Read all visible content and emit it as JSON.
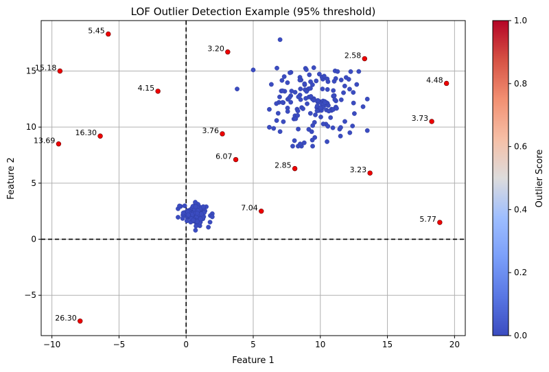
{
  "chart_data": {
    "type": "scatter",
    "title": "LOF Outlier Detection Example (95% threshold)",
    "xlabel": "Feature 1",
    "ylabel": "Feature 2",
    "xlim": [
      -10.8,
      20.8
    ],
    "ylim": [
      -8.6,
      19.5
    ],
    "xticks": [
      -10,
      -5,
      0,
      5,
      10,
      15,
      20
    ],
    "yticks": [
      -5,
      0,
      5,
      10,
      15
    ],
    "xtick_labels": [
      "−10",
      "−5",
      "0",
      "5",
      "10",
      "15",
      "20"
    ],
    "ytick_labels": [
      "−5",
      "0",
      "5",
      "10",
      "15"
    ],
    "grid": true,
    "reference_lines": {
      "x": 0,
      "y": 0,
      "style": "dashed"
    },
    "colorbar": {
      "label": "Outlier Score",
      "min": 0.0,
      "max": 1.0,
      "ticks": [
        0.0,
        0.2,
        0.4,
        0.6,
        0.8,
        1.0
      ],
      "tick_labels": [
        "0.0",
        "0.2",
        "0.4",
        "0.6",
        "0.8",
        "1.0"
      ],
      "colormap": "coolwarm"
    },
    "inlier_color": "#3b4cc0",
    "outlier_color": "#ee0000",
    "clusters": [
      {
        "name": "",
        "center": [
          9.5,
          12.2
        ],
        "spread": [
          1.6,
          1.65
        ],
        "count": 150,
        "seed": 7,
        "bounds": [
          6.2,
          13.5,
          8.3,
          15.4
        ]
      },
      {
        "name": "",
        "center": [
          0.75,
          2.15
        ],
        "spread": [
          0.55,
          0.45
        ],
        "count": 120,
        "seed": 3,
        "bounds": [
          -0.6,
          1.95,
          0.75,
          3.3
        ]
      }
    ],
    "inlier_extra_points": [
      {
        "x": 7.0,
        "y": 17.8
      },
      {
        "x": 5.0,
        "y": 15.1
      },
      {
        "x": 3.8,
        "y": 13.4
      },
      {
        "x": 12.4,
        "y": 10.1
      },
      {
        "x": 12.2,
        "y": 9.5
      },
      {
        "x": 7.0,
        "y": 9.6
      },
      {
        "x": 8.5,
        "y": 8.5
      },
      {
        "x": 8.8,
        "y": 8.6
      },
      {
        "x": 10.5,
        "y": 8.7
      },
      {
        "x": 11.5,
        "y": 9.2
      },
      {
        "x": 0.7,
        "y": 0.8
      }
    ],
    "outliers": [
      {
        "x": -5.8,
        "y": 18.3,
        "label": "5.45"
      },
      {
        "x": -9.4,
        "y": 15.0,
        "label": "15.18"
      },
      {
        "x": -2.1,
        "y": 13.2,
        "label": "4.15"
      },
      {
        "x": -6.4,
        "y": 9.2,
        "label": "16.30"
      },
      {
        "x": -9.5,
        "y": 8.5,
        "label": "13.69"
      },
      {
        "x": 3.1,
        "y": 16.7,
        "label": "3.20"
      },
      {
        "x": 13.3,
        "y": 16.1,
        "label": "2.58"
      },
      {
        "x": 19.4,
        "y": 13.9,
        "label": "4.48"
      },
      {
        "x": 18.3,
        "y": 10.5,
        "label": "3.73"
      },
      {
        "x": 2.7,
        "y": 9.4,
        "label": "3.76"
      },
      {
        "x": 3.7,
        "y": 7.1,
        "label": "6.07"
      },
      {
        "x": 8.1,
        "y": 6.3,
        "label": "2.85"
      },
      {
        "x": 13.7,
        "y": 5.9,
        "label": "3.23"
      },
      {
        "x": 5.6,
        "y": 2.5,
        "label": "7.04"
      },
      {
        "x": 18.9,
        "y": 1.5,
        "label": "5.77"
      },
      {
        "x": -7.9,
        "y": -7.3,
        "label": "26.30"
      }
    ]
  }
}
